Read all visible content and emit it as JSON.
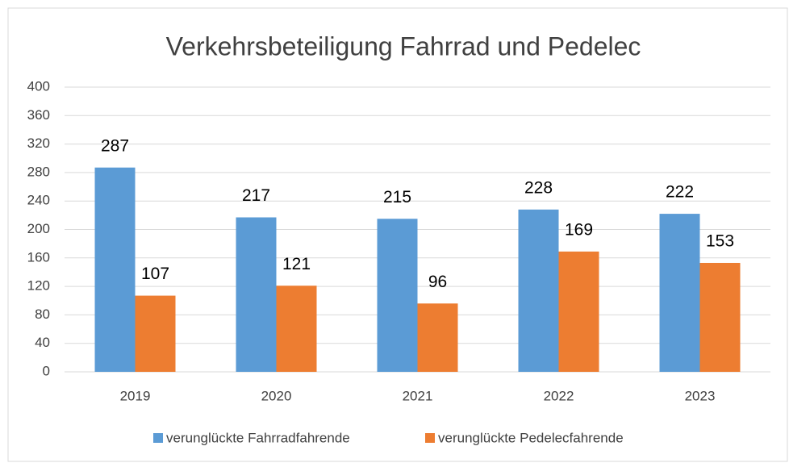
{
  "chart_data": {
    "type": "bar",
    "title": "Verkehrsbeteiligung Fahrrad und Pedelec",
    "categories": [
      "2019",
      "2020",
      "2021",
      "2022",
      "2023"
    ],
    "series": [
      {
        "name": "verunglückte Fahrradfahrende",
        "color": "#5b9bd5",
        "values": [
          287,
          217,
          215,
          228,
          222
        ]
      },
      {
        "name": "verunglückte Pedelecfahrende",
        "color": "#ed7d31",
        "values": [
          107,
          121,
          96,
          169,
          153
        ]
      }
    ],
    "ylim": [
      0,
      400
    ],
    "yticks": [
      0,
      40,
      80,
      120,
      160,
      200,
      240,
      280,
      320,
      360,
      400
    ],
    "grid": true,
    "legend": "bottom"
  }
}
